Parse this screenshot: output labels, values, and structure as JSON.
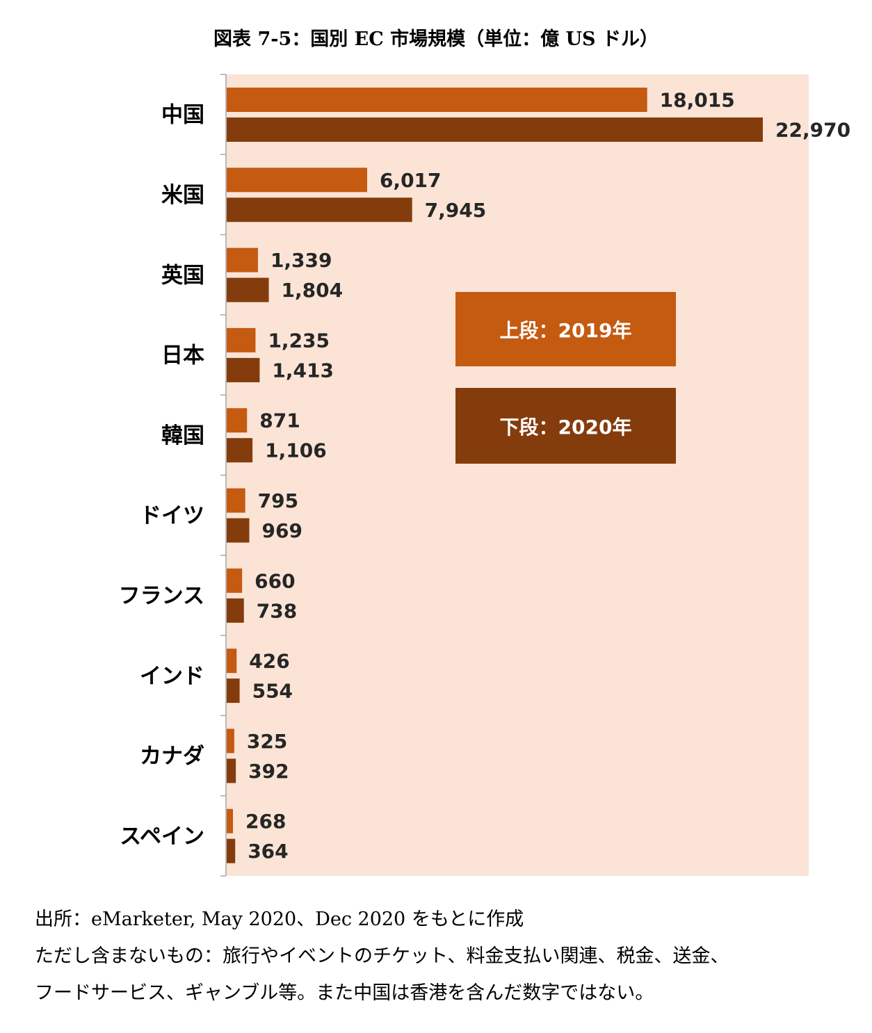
{
  "title": "図表 7-5：国別 EC 市場規模（単位：億 US ドル）",
  "legend": {
    "upper": "上段：2019年",
    "lower": "下段：2020年"
  },
  "colors": {
    "background": "#fbe4d6",
    "series_2019": "#c55a11",
    "series_2020": "#843c0c",
    "axis": "#a6a6a6"
  },
  "chart_data": {
    "type": "bar",
    "orientation": "horizontal",
    "categories": [
      "中国",
      "米国",
      "英国",
      "日本",
      "韓国",
      "ドイツ",
      "フランス",
      "インド",
      "カナダ",
      "スペイン"
    ],
    "series": [
      {
        "name": "上段：2019年",
        "values": [
          18015,
          6017,
          1339,
          1235,
          871,
          795,
          660,
          426,
          325,
          268
        ],
        "labels": [
          "18,015",
          "6,017",
          "1,339",
          "1,235",
          "871",
          "795",
          "660",
          "426",
          "325",
          "268"
        ]
      },
      {
        "name": "下段：2020年",
        "values": [
          22970,
          7945,
          1804,
          1413,
          1106,
          969,
          738,
          554,
          392,
          364
        ],
        "labels": [
          "22,970",
          "7,945",
          "1,804",
          "1,413",
          "1,106",
          "969",
          "738",
          "554",
          "392",
          "364"
        ]
      }
    ],
    "xlim": [
      0,
      28000
    ],
    "grid": false
  },
  "notes": [
    "出所：eMarketer, May 2020、Dec 2020 をもとに作成",
    "ただし含まないもの：旅行やイベントのチケット、料金支払い関連、税金、送金、",
    "フードサービス、ギャンブル等。また中国は香港を含んだ数字ではない。"
  ]
}
